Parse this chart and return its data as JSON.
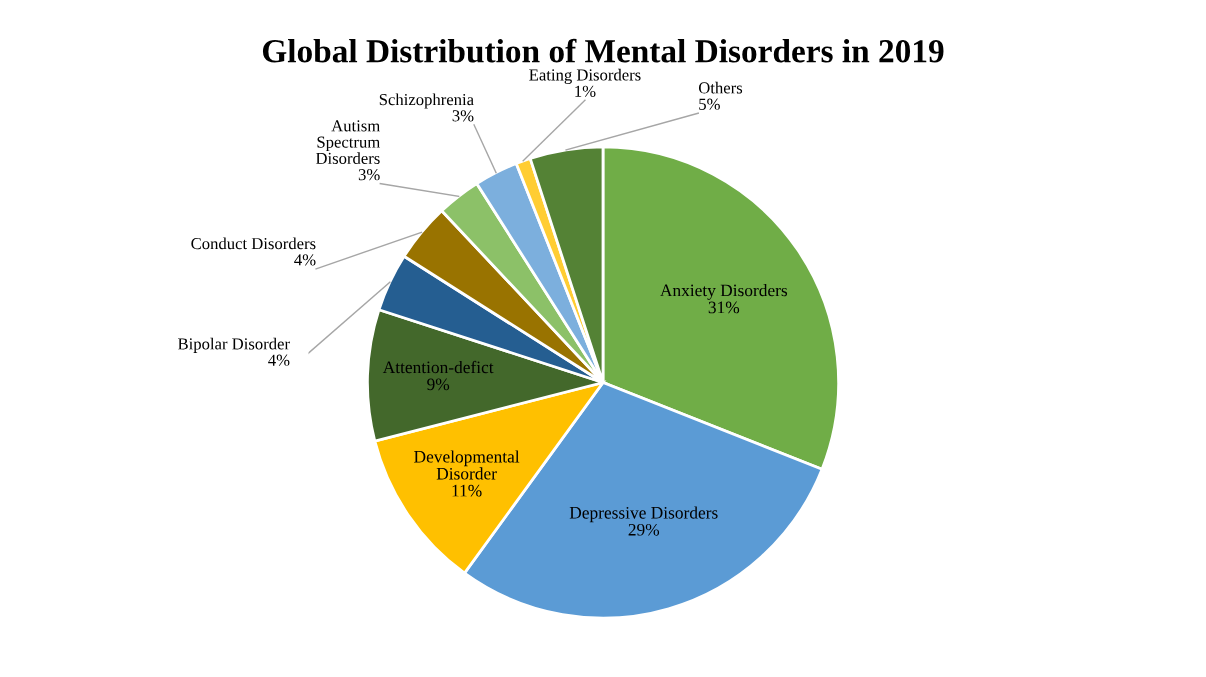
{
  "chart_data": {
    "type": "pie",
    "title": "Global Distribution of Mental Disorders in 2019",
    "categories": [
      "Anxiety Disorders",
      "Depressive Disorders",
      "Developmental Disorder",
      "Attention-defict",
      "Bipolar Disorder",
      "Conduct Disorders",
      "Autism Spectrum Disorders",
      "Schizophrenia",
      "Eating Disorders",
      "Others"
    ],
    "values": [
      31,
      29,
      11,
      9,
      4,
      4,
      3,
      3,
      1,
      5
    ],
    "colors": [
      "#70ad47",
      "#5b9bd5",
      "#ffc000",
      "#43682b",
      "#255e91",
      "#997300",
      "#8cc168",
      "#7cafdd",
      "#ffcd33",
      "#548235"
    ],
    "value_labels": [
      "31%",
      "29%",
      "11%",
      "9%",
      "4%",
      "4%",
      "3%",
      "3%",
      "1%",
      "5%"
    ]
  }
}
